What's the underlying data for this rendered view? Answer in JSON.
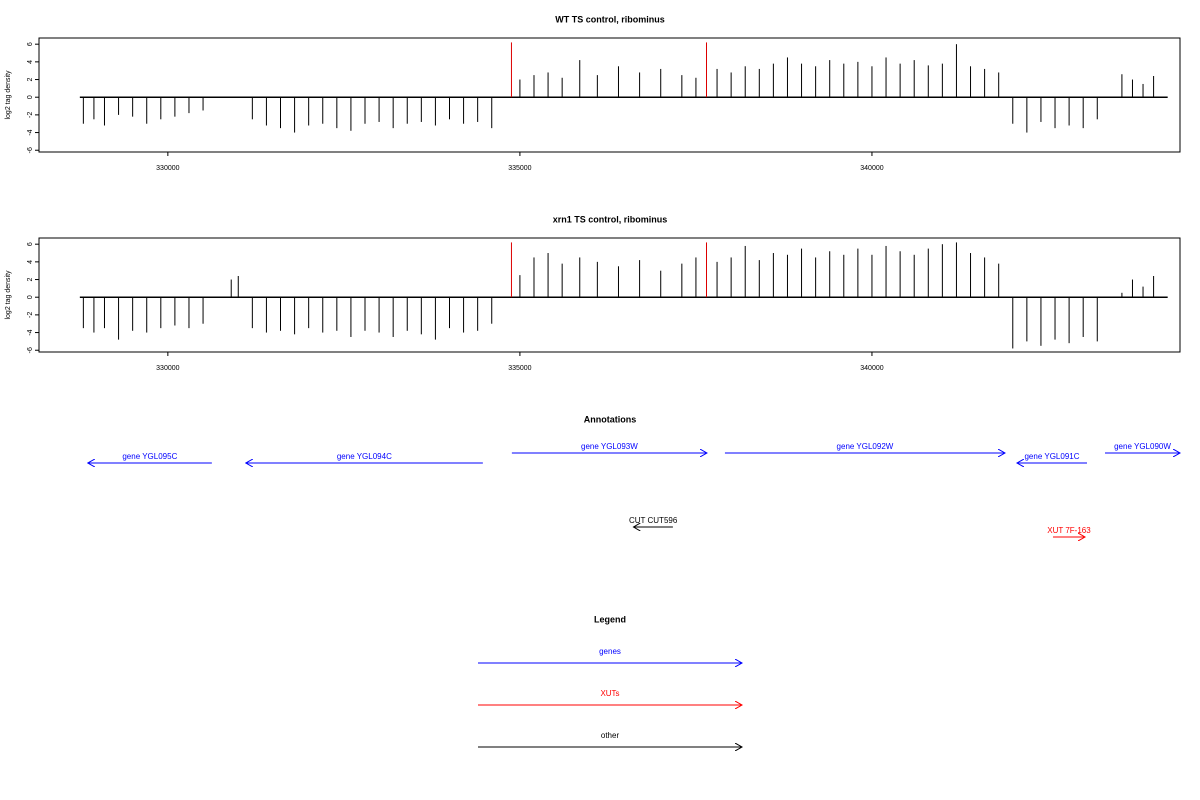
{
  "chart_data": [
    {
      "type": "bar",
      "title": "WT TS control, ribominus",
      "y_label": "log2 tag density",
      "xlim": [
        328170,
        344375
      ],
      "ylim": [
        -6.2,
        6.7
      ],
      "xticks": [
        330000,
        335000,
        340000
      ],
      "yticks": [
        -6,
        -4,
        -2,
        0,
        2,
        4,
        6
      ],
      "color": "#000000",
      "x": [
        328800,
        328950,
        329100,
        329300,
        329500,
        329700,
        329900,
        330100,
        330300,
        330500,
        331200,
        331400,
        331600,
        331800,
        332000,
        332200,
        332400,
        332600,
        332800,
        333000,
        333200,
        333400,
        333600,
        333800,
        334000,
        334200,
        334400,
        334600,
        335000,
        335200,
        335400,
        335600,
        335850,
        336100,
        336400,
        336700,
        337000,
        337300,
        337500,
        337800,
        338000,
        338200,
        338400,
        338600,
        338800,
        339000,
        339200,
        339400,
        339600,
        339800,
        340000,
        340200,
        340400,
        340600,
        340800,
        341000,
        341200,
        341400,
        341600,
        341800,
        342000,
        342200,
        342400,
        342600,
        342800,
        343000,
        343200,
        343550,
        343700,
        343850,
        344000
      ],
      "values": [
        -3,
        -2.5,
        -3.2,
        -2,
        -2.2,
        -3,
        -2.5,
        -2.2,
        -1.8,
        -1.5,
        -2.5,
        -3.2,
        -3.5,
        -4,
        -3.2,
        -3,
        -3.5,
        -3.8,
        -3,
        -2.8,
        -3.5,
        -3,
        -2.8,
        -3.2,
        -2.5,
        -3,
        -2.8,
        -3.5,
        2,
        2.5,
        2.8,
        2.2,
        4.2,
        2.5,
        3.5,
        2.8,
        3.2,
        2.5,
        2.2,
        3.2,
        2.8,
        3.5,
        3.2,
        3.8,
        4.5,
        3.8,
        3.5,
        4.2,
        3.8,
        4,
        3.5,
        4.5,
        3.8,
        4.2,
        3.6,
        3.8,
        6,
        3.5,
        3.2,
        2.8,
        -3,
        -4,
        -2.8,
        -3.5,
        -3.2,
        -3.5,
        -2.5,
        2.6,
        2,
        1.5,
        2.4
      ],
      "highlight_color": "#dd0000",
      "highlight_x": [
        334880,
        337650
      ],
      "highlight_values": [
        6.2,
        6.2
      ]
    },
    {
      "type": "bar",
      "title": "xrn1 TS control, ribominus",
      "y_label": "log2 tag density",
      "xlim": [
        328170,
        344375
      ],
      "ylim": [
        -6.2,
        6.7
      ],
      "xticks": [
        330000,
        335000,
        340000
      ],
      "yticks": [
        -6,
        -4,
        -2,
        0,
        2,
        4,
        6
      ],
      "color": "#000000",
      "x": [
        328800,
        328950,
        329100,
        329300,
        329500,
        329700,
        329900,
        330100,
        330300,
        330500,
        330900,
        331000,
        331200,
        331400,
        331600,
        331800,
        332000,
        332200,
        332400,
        332600,
        332800,
        333000,
        333200,
        333400,
        333600,
        333800,
        334000,
        334200,
        334400,
        334600,
        335000,
        335200,
        335400,
        335600,
        335850,
        336100,
        336400,
        336700,
        337000,
        337300,
        337500,
        337800,
        338000,
        338200,
        338400,
        338600,
        338800,
        339000,
        339200,
        339400,
        339600,
        339800,
        340000,
        340200,
        340400,
        340600,
        340800,
        341000,
        341200,
        341400,
        341600,
        341800,
        342000,
        342200,
        342400,
        342600,
        342800,
        343000,
        343200,
        343550,
        343700,
        343850,
        344000
      ],
      "values": [
        -3.5,
        -4,
        -3.5,
        -4.8,
        -3.8,
        -4,
        -3.5,
        -3.2,
        -3.5,
        -3,
        2,
        2.4,
        -3.5,
        -4,
        -3.8,
        -4.2,
        -3.5,
        -4,
        -3.8,
        -4.5,
        -3.8,
        -4,
        -4.5,
        -3.8,
        -4.2,
        -4.8,
        -3.5,
        -4,
        -3.8,
        -3,
        2.5,
        4.5,
        5,
        3.8,
        4.5,
        4,
        3.5,
        4.2,
        3,
        3.8,
        4.5,
        4,
        4.5,
        5.8,
        4.2,
        5,
        4.8,
        5.5,
        4.5,
        5.2,
        4.8,
        5.5,
        4.8,
        5.8,
        5.2,
        4.8,
        5.5,
        6,
        6.2,
        5,
        4.5,
        3.8,
        -5.8,
        -5,
        -5.5,
        -4.8,
        -5.2,
        -4.5,
        -5,
        0.5,
        2,
        1.2,
        2.4
      ],
      "highlight_color": "#dd0000",
      "highlight_x": [
        334880,
        337650
      ],
      "highlight_values": [
        6.2,
        6.2
      ]
    }
  ],
  "annotations": {
    "title": "Annotations",
    "features": [
      {
        "label": "gene YGL095C",
        "start": 330625,
        "end": 328864,
        "color": "#0000ff"
      },
      {
        "label": "gene YGL094C",
        "start": 334474,
        "end": 331108,
        "color": "#0000ff"
      },
      {
        "label": "gene YGL093W",
        "start": 334886,
        "end": 337656,
        "color": "#0000ff"
      },
      {
        "label": "gene YGL092W",
        "start": 337912,
        "end": 341889,
        "color": "#0000ff"
      },
      {
        "label": "gene YGL091C",
        "start": 343054,
        "end": 342060,
        "color": "#0000ff"
      },
      {
        "label": "gene YGL090W",
        "start": 343310,
        "end": 344375,
        "color": "#0000ff"
      },
      {
        "label": "CUT CUT596",
        "start": 337173,
        "end": 336612,
        "color": "#000000"
      },
      {
        "label": "XUT 7F-163",
        "start": 342571,
        "end": 343026,
        "color": "#ff0000"
      }
    ]
  },
  "legend": {
    "title": "Legend",
    "items": [
      {
        "label": "genes",
        "color": "#0000ff"
      },
      {
        "label": "XUTs",
        "color": "#ff0000"
      },
      {
        "label": "other",
        "color": "#000000"
      }
    ]
  }
}
